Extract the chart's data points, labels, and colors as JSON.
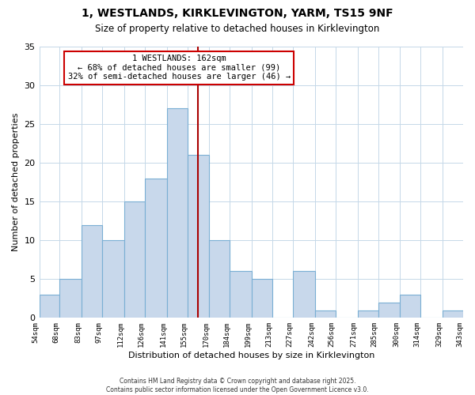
{
  "title": "1, WESTLANDS, KIRKLEVINGTON, YARM, TS15 9NF",
  "subtitle": "Size of property relative to detached houses in Kirklevington",
  "xlabel": "Distribution of detached houses by size in Kirklevington",
  "ylabel": "Number of detached properties",
  "bin_edges": [
    54,
    68,
    83,
    97,
    112,
    126,
    141,
    155,
    170,
    184,
    199,
    213,
    227,
    242,
    256,
    271,
    285,
    300,
    314,
    329,
    343
  ],
  "counts": [
    3,
    5,
    12,
    10,
    15,
    18,
    27,
    21,
    10,
    6,
    5,
    0,
    6,
    1,
    0,
    1,
    2,
    3,
    0,
    1
  ],
  "bar_color": "#c8d8eb",
  "bar_edge_color": "#7aafd4",
  "vline_x": 162,
  "vline_color": "#aa0000",
  "annotation_title": "1 WESTLANDS: 162sqm",
  "annotation_line1": "← 68% of detached houses are smaller (99)",
  "annotation_line2": "32% of semi-detached houses are larger (46) →",
  "annotation_box_edge": "#cc0000",
  "ylim": [
    0,
    35
  ],
  "yticks": [
    0,
    5,
    10,
    15,
    20,
    25,
    30,
    35
  ],
  "footnote1": "Contains HM Land Registry data © Crown copyright and database right 2025.",
  "footnote2": "Contains public sector information licensed under the Open Government Licence v3.0.",
  "background_color": "#ffffff",
  "grid_color": "#c5d8e8"
}
